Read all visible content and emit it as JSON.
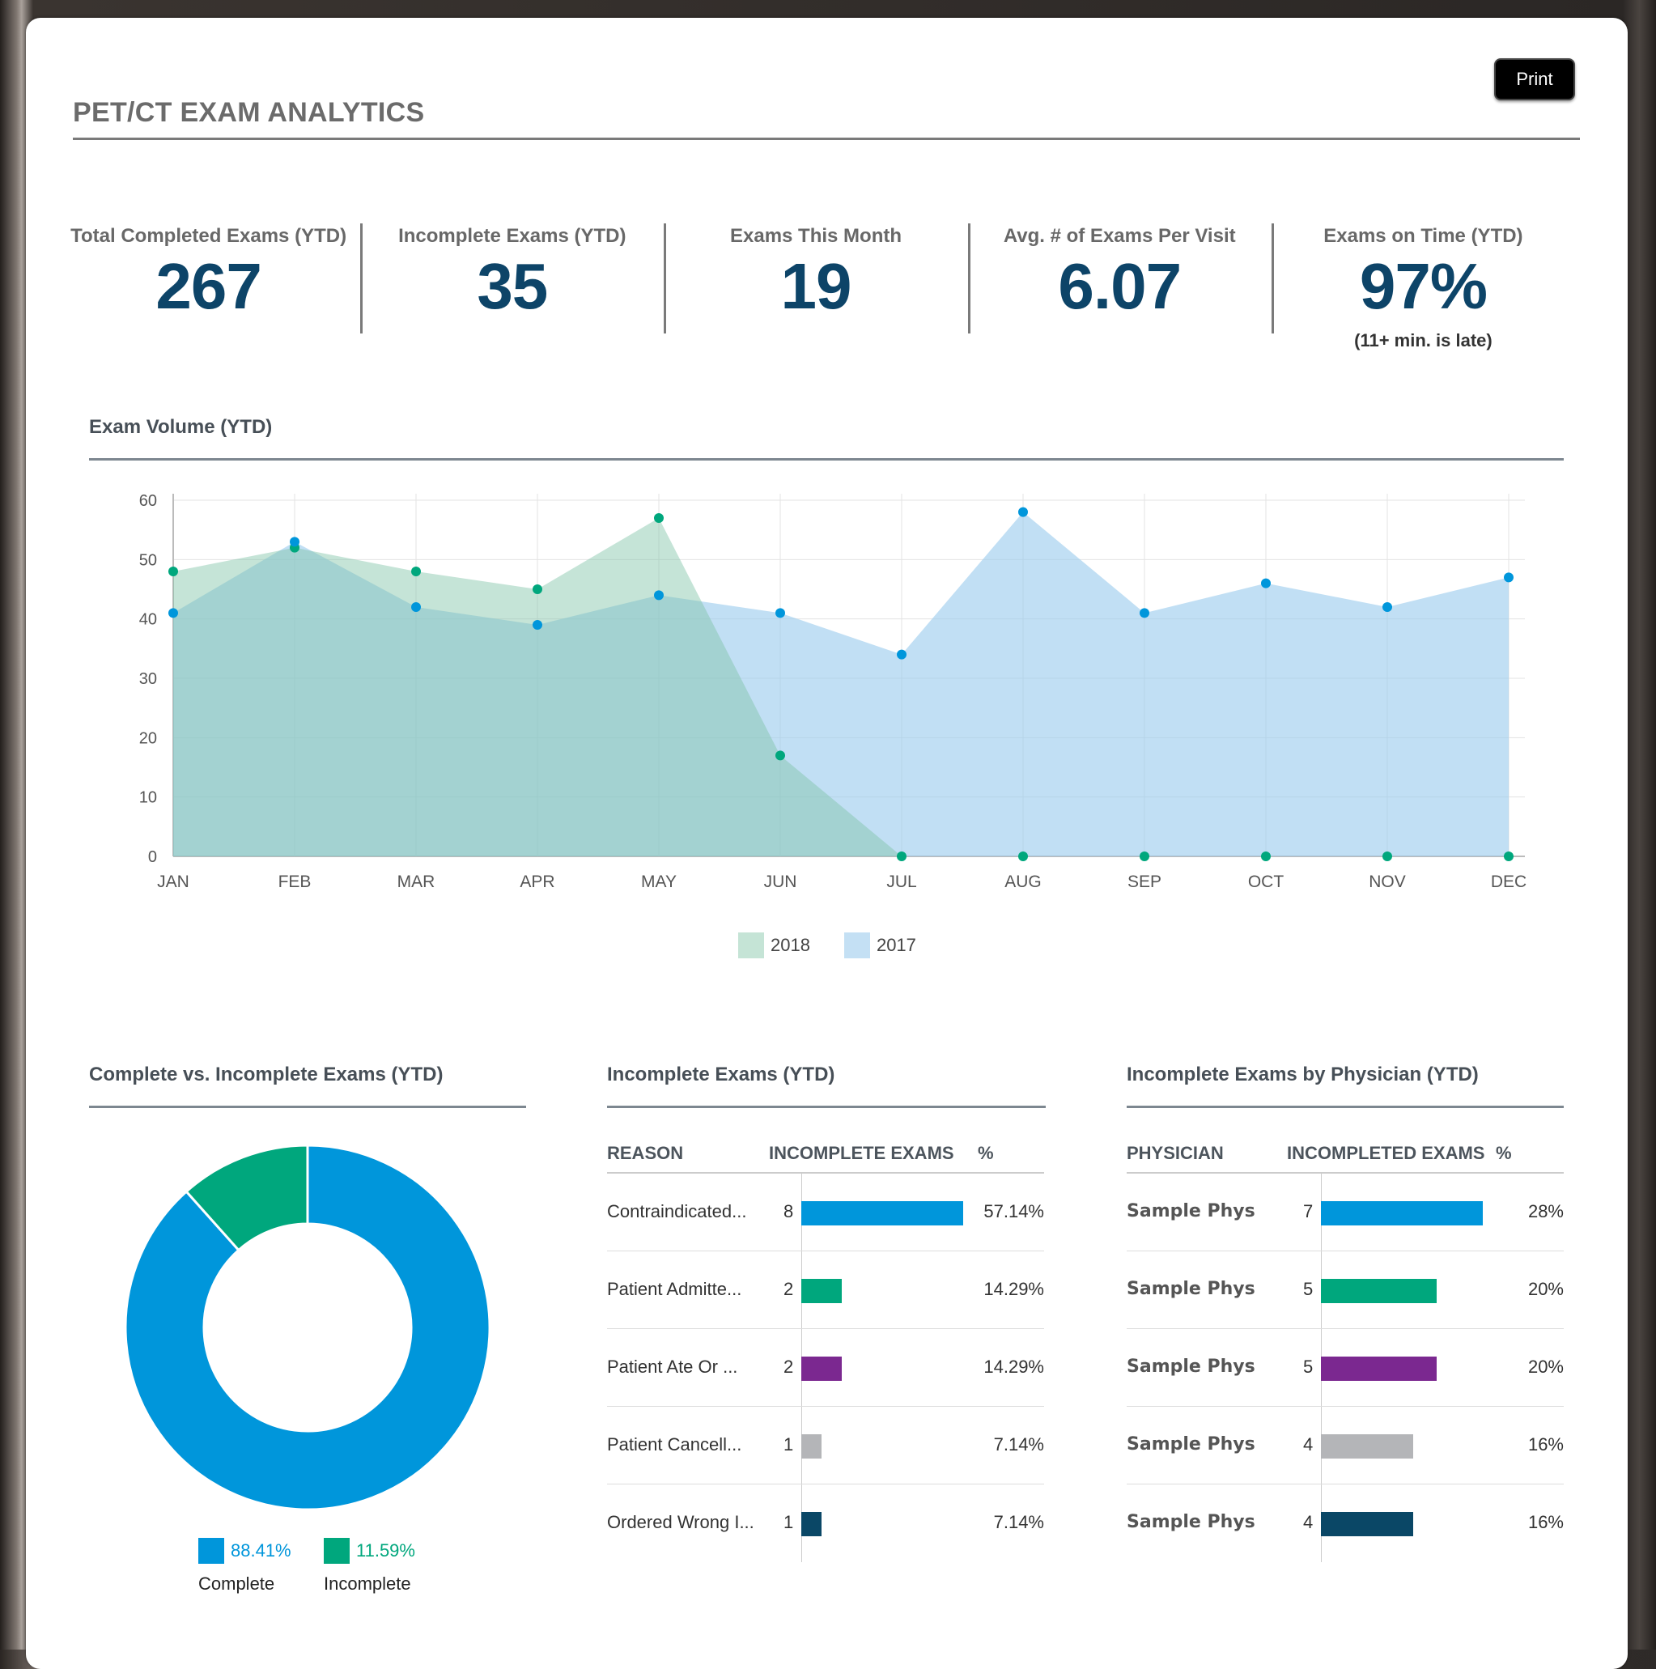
{
  "header": {
    "title": "PET/CT EXAM ANALYTICS",
    "print_label": "Print"
  },
  "kpis": [
    {
      "label": "Total Completed Exams (YTD)",
      "value": "267",
      "note": ""
    },
    {
      "label": "Incomplete Exams (YTD)",
      "value": "35",
      "note": ""
    },
    {
      "label": "Exams This Month",
      "value": "19",
      "note": ""
    },
    {
      "label": "Avg. # of Exams Per Visit",
      "value": "6.07",
      "note": ""
    },
    {
      "label": "Exams on Time (YTD)",
      "value": "97%",
      "note": "(11+ min. is late)"
    }
  ],
  "volume": {
    "title": "Exam Volume (YTD)"
  },
  "donut_section": {
    "title": "Complete vs. Incomplete Exams (YTD)"
  },
  "reasons_section": {
    "title": "Incomplete Exams (YTD)",
    "columns": [
      "REASON",
      "INCOMPLETE EXAMS",
      "%"
    ],
    "rows": [
      {
        "reason": "Contraindicated...",
        "count": "8",
        "pct": "57.14%",
        "color": "#0096db"
      },
      {
        "reason": "Patient Admitte...",
        "count": "2",
        "pct": "14.29%",
        "color": "#00a77d"
      },
      {
        "reason": "Patient Ate Or ...",
        "count": "2",
        "pct": "14.29%",
        "color": "#7b2890"
      },
      {
        "reason": "Patient Cancell...",
        "count": "1",
        "pct": "7.14%",
        "color": "#b4b5b8"
      },
      {
        "reason": "Ordered Wrong I...",
        "count": "1",
        "pct": "7.14%",
        "color": "#0a4766"
      }
    ]
  },
  "physician_section": {
    "title": "Incomplete Exams by Physician (YTD)",
    "columns": [
      "PHYSICIAN",
      "INCOMPLETED EXAMS",
      "%"
    ],
    "rows": [
      {
        "name": "Sample Phys",
        "count": "7",
        "pct": "28%",
        "color": "#0096db"
      },
      {
        "name": "Sample Phys",
        "count": "5",
        "pct": "20%",
        "color": "#00a77d"
      },
      {
        "name": "Sample Phys",
        "count": "5",
        "pct": "20%",
        "color": "#7b2890"
      },
      {
        "name": "Sample Phys",
        "count": "4",
        "pct": "16%",
        "color": "#b4b5b8"
      },
      {
        "name": "Sample Phys",
        "count": "4",
        "pct": "16%",
        "color": "#0a4766"
      }
    ]
  },
  "chart_data": [
    {
      "type": "area",
      "title": "Exam Volume (YTD)",
      "categories": [
        "JAN",
        "FEB",
        "MAR",
        "APR",
        "MAY",
        "JUN",
        "JUL",
        "AUG",
        "SEP",
        "OCT",
        "NOV",
        "DEC"
      ],
      "ylim": [
        0,
        60
      ],
      "yticks": [
        0,
        10,
        20,
        30,
        40,
        50,
        60
      ],
      "grid": true,
      "legend": "bottom-center",
      "series": [
        {
          "name": "2018",
          "values": [
            48,
            52,
            48,
            45,
            57,
            17,
            0,
            0,
            0,
            0,
            0,
            0
          ],
          "fill": "#c5e4d6",
          "marker": "#00a77d"
        },
        {
          "name": "2017",
          "values": [
            41,
            53,
            42,
            39,
            44,
            41,
            34,
            58,
            41,
            46,
            42,
            47
          ],
          "fill": "#c4e0f4",
          "marker": "#0096db"
        }
      ]
    },
    {
      "type": "pie",
      "title": "Complete vs. Incomplete Exams (YTD)",
      "labels": [
        "Complete",
        "Incomplete"
      ],
      "values": [
        88.41,
        11.59
      ],
      "display": [
        "88.41%",
        "11.59%"
      ],
      "colors": [
        "#0096db",
        "#00a77d"
      ],
      "legend": "bottom"
    }
  ]
}
